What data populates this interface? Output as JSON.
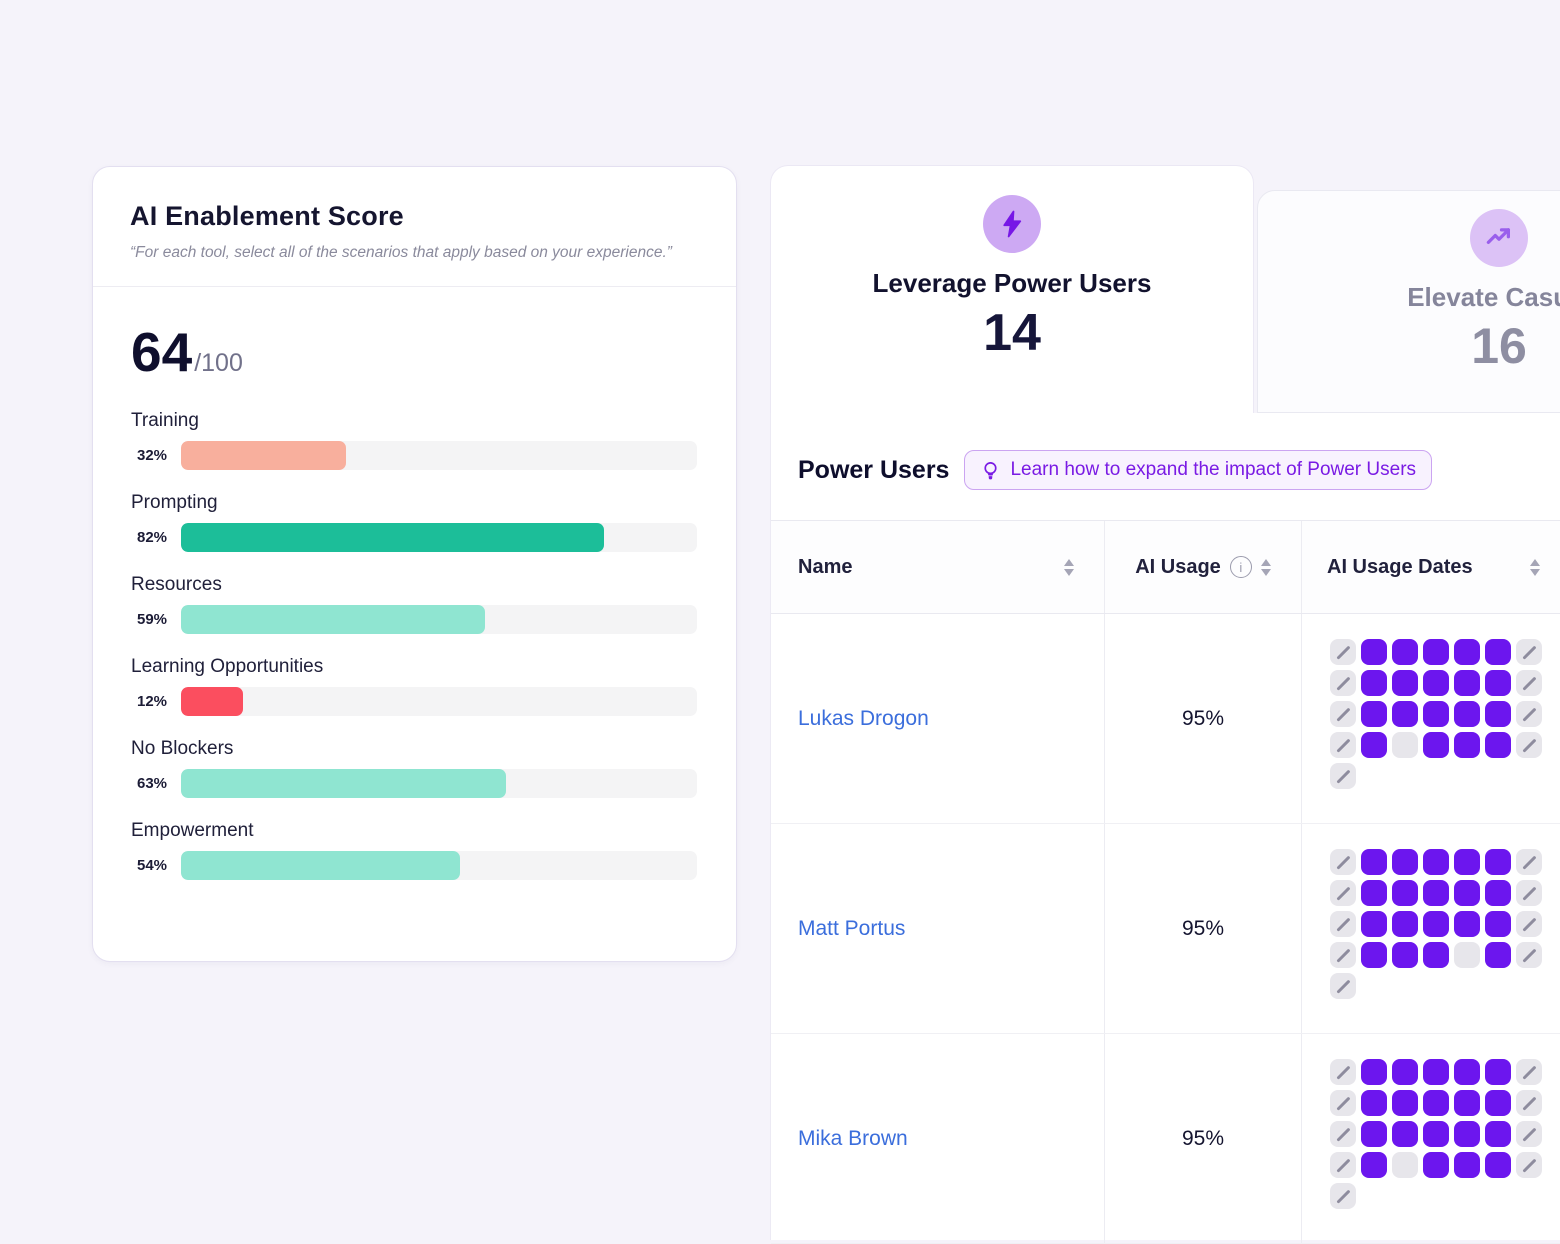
{
  "score_card": {
    "title": "AI Enablement Score",
    "subtitle": "“For each tool, select all of the scenarios that apply based on your experience.”",
    "score": "64",
    "score_max": "/100",
    "metrics": [
      {
        "label": "Training",
        "percent": "32%",
        "value": 32,
        "color": "#F8AF9D"
      },
      {
        "label": "Prompting",
        "percent": "82%",
        "value": 82,
        "color": "#1CBE99"
      },
      {
        "label": "Resources",
        "percent": "59%",
        "value": 59,
        "color": "#8FE5D1"
      },
      {
        "label": "Learning Opportunities",
        "percent": "12%",
        "value": 12,
        "color": "#FB4E5F"
      },
      {
        "label": "No Blockers",
        "percent": "63%",
        "value": 63,
        "color": "#8FE5D1"
      },
      {
        "label": "Empowerment",
        "percent": "54%",
        "value": 54,
        "color": "#8FE5D1"
      }
    ]
  },
  "tabs": {
    "active": {
      "label": "Leverage Power Users",
      "count": "14",
      "icon": "lightning-bolt"
    },
    "inactive": {
      "label": "Elevate Casual",
      "count": "16",
      "icon": "trend-up"
    }
  },
  "power_users": {
    "heading": "Power Users",
    "tip_badge": "Learn how to expand the impact of Power Users",
    "table": {
      "columns": [
        "Name",
        "AI Usage",
        "AI Usage Dates"
      ],
      "legend": {
        "p": "active-day",
        "s": "excluded-day",
        "e": "inactive-day"
      },
      "rows": [
        {
          "name": "Lukas Drogon",
          "ai_usage": "95%",
          "usage_dates": [
            [
              "s",
              "p",
              "p",
              "p",
              "p",
              "p",
              "s"
            ],
            [
              "s",
              "p",
              "p",
              "p",
              "p",
              "p",
              "s"
            ],
            [
              "s",
              "p",
              "p",
              "p",
              "p",
              "p",
              "s"
            ],
            [
              "s",
              "p",
              "e",
              "p",
              "p",
              "p",
              "s"
            ],
            [
              "s"
            ]
          ]
        },
        {
          "name": "Matt Portus",
          "ai_usage": "95%",
          "usage_dates": [
            [
              "s",
              "p",
              "p",
              "p",
              "p",
              "p",
              "s"
            ],
            [
              "s",
              "p",
              "p",
              "p",
              "p",
              "p",
              "s"
            ],
            [
              "s",
              "p",
              "p",
              "p",
              "p",
              "p",
              "s"
            ],
            [
              "s",
              "p",
              "p",
              "p",
              "e",
              "p",
              "s"
            ],
            [
              "s"
            ]
          ]
        },
        {
          "name": "Mika Brown",
          "ai_usage": "95%",
          "usage_dates": [
            [
              "s",
              "p",
              "p",
              "p",
              "p",
              "p",
              "s"
            ],
            [
              "s",
              "p",
              "p",
              "p",
              "p",
              "p",
              "s"
            ],
            [
              "s",
              "p",
              "p",
              "p",
              "p",
              "p",
              "s"
            ],
            [
              "s",
              "p",
              "e",
              "p",
              "p",
              "p",
              "s"
            ],
            [
              "s"
            ]
          ]
        }
      ]
    }
  },
  "colors": {
    "page_bg": "#F5F3FA",
    "accent_purple": "#6C16EE",
    "badge_text": "#7A1BE4",
    "link_blue": "#3B6EDC",
    "bar_red": "#FB4E5F",
    "bar_salmon": "#F8AF9D",
    "bar_teal": "#1CBE99",
    "bar_teal_light": "#8FE5D1"
  }
}
